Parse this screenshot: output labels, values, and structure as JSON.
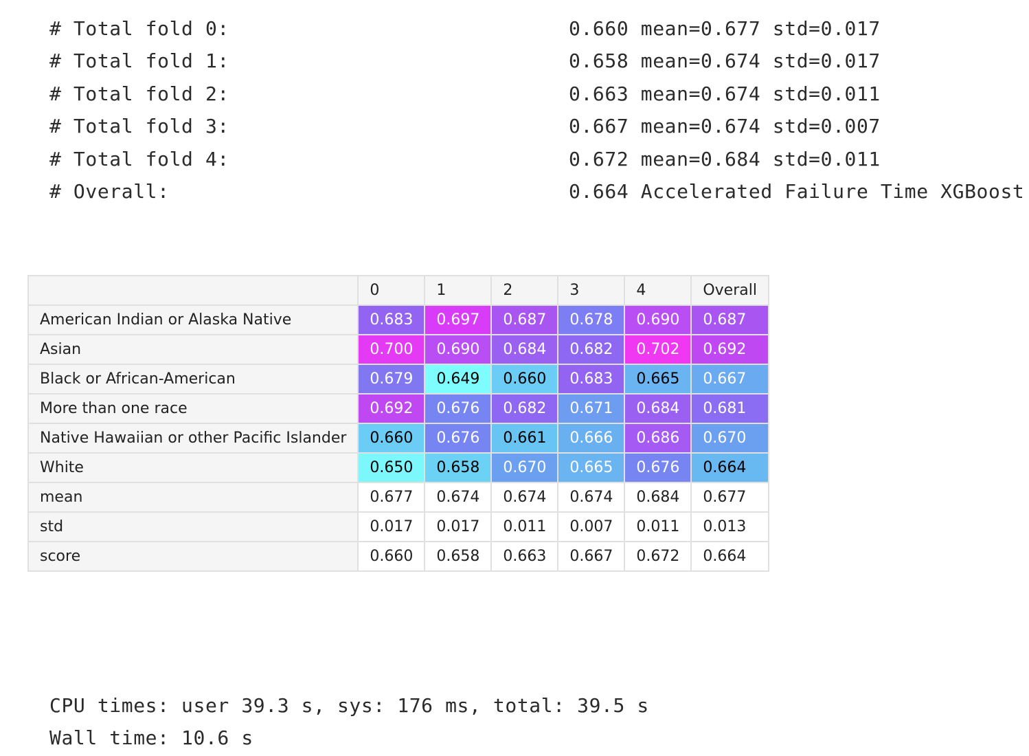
{
  "log": {
    "lines": [
      {
        "label": "# Total fold 0:",
        "value": "0.660 mean=0.677 std=0.017"
      },
      {
        "label": "# Total fold 1:",
        "value": "0.658 mean=0.674 std=0.017"
      },
      {
        "label": "# Total fold 2:",
        "value": "0.663 mean=0.674 std=0.011"
      },
      {
        "label": "# Total fold 3:",
        "value": "0.667 mean=0.674 std=0.007"
      },
      {
        "label": "# Total fold 4:",
        "value": "0.672 mean=0.684 std=0.011"
      },
      {
        "label": "# Overall:",
        "value": "0.664 Accelerated Failure Time XGBoost"
      }
    ]
  },
  "table": {
    "columns": [
      "0",
      "1",
      "2",
      "3",
      "4",
      "Overall"
    ],
    "rows": [
      {
        "label": "American Indian or Alaska Native",
        "cells": [
          {
            "value": "0.683",
            "bg": "#9264f1",
            "fg": "#ffffff"
          },
          {
            "value": "0.697",
            "bg": "#d83cf8",
            "fg": "#ffffff"
          },
          {
            "value": "0.687",
            "bg": "#a955f2",
            "fg": "#ffffff"
          },
          {
            "value": "0.678",
            "bg": "#7d7ef3",
            "fg": "#ffffff"
          },
          {
            "value": "0.690",
            "bg": "#b84ef4",
            "fg": "#ffffff"
          },
          {
            "value": "0.687",
            "bg": "#a955f2",
            "fg": "#ffffff"
          }
        ]
      },
      {
        "label": "Asian",
        "cells": [
          {
            "value": "0.700",
            "bg": "#e43af5",
            "fg": "#ffffff"
          },
          {
            "value": "0.690",
            "bg": "#b84ef4",
            "fg": "#ffffff"
          },
          {
            "value": "0.684",
            "bg": "#9a60f2",
            "fg": "#ffffff"
          },
          {
            "value": "0.682",
            "bg": "#8e68f2",
            "fg": "#ffffff"
          },
          {
            "value": "0.702",
            "bg": "#f038f2",
            "fg": "#ffffff"
          },
          {
            "value": "0.692",
            "bg": "#c048f3",
            "fg": "#ffffff"
          }
        ]
      },
      {
        "label": "Black or African-American",
        "cells": [
          {
            "value": "0.679",
            "bg": "#8077f1",
            "fg": "#ffffff"
          },
          {
            "value": "0.649",
            "bg": "#7efdfe",
            "fg": "#000000"
          },
          {
            "value": "0.660",
            "bg": "#6bccf5",
            "fg": "#000000"
          },
          {
            "value": "0.683",
            "bg": "#9264f1",
            "fg": "#ffffff"
          },
          {
            "value": "0.665",
            "bg": "#69b4f1",
            "fg": "#000000"
          },
          {
            "value": "0.667",
            "bg": "#6aaaf0",
            "fg": "#ffffff"
          }
        ]
      },
      {
        "label": "More than one race",
        "cells": [
          {
            "value": "0.692",
            "bg": "#c048f3",
            "fg": "#ffffff"
          },
          {
            "value": "0.676",
            "bg": "#7785f2",
            "fg": "#ffffff"
          },
          {
            "value": "0.682",
            "bg": "#8e68f2",
            "fg": "#ffffff"
          },
          {
            "value": "0.671",
            "bg": "#6d9cf1",
            "fg": "#ffffff"
          },
          {
            "value": "0.684",
            "bg": "#9a60f2",
            "fg": "#ffffff"
          },
          {
            "value": "0.681",
            "bg": "#8a6df2",
            "fg": "#ffffff"
          }
        ]
      },
      {
        "label": "Native Hawaiian or other Pacific Islander",
        "cells": [
          {
            "value": "0.660",
            "bg": "#6bccf5",
            "fg": "#000000"
          },
          {
            "value": "0.676",
            "bg": "#7785f2",
            "fg": "#ffffff"
          },
          {
            "value": "0.661",
            "bg": "#68c4f3",
            "fg": "#000000"
          },
          {
            "value": "0.666",
            "bg": "#69b0f1",
            "fg": "#ffffff"
          },
          {
            "value": "0.686",
            "bg": "#a55af3",
            "fg": "#ffffff"
          },
          {
            "value": "0.670",
            "bg": "#6ba0f0",
            "fg": "#ffffff"
          }
        ]
      },
      {
        "label": "White",
        "cells": [
          {
            "value": "0.650",
            "bg": "#7cf8fc",
            "fg": "#000000"
          },
          {
            "value": "0.658",
            "bg": "#6bd2f6",
            "fg": "#000000"
          },
          {
            "value": "0.670",
            "bg": "#6ba0f0",
            "fg": "#ffffff"
          },
          {
            "value": "0.665",
            "bg": "#69b4f1",
            "fg": "#ffffff"
          },
          {
            "value": "0.676",
            "bg": "#7785f2",
            "fg": "#ffffff"
          },
          {
            "value": "0.664",
            "bg": "#68b8f2",
            "fg": "#000000"
          }
        ]
      },
      {
        "label": "mean",
        "cells": [
          {
            "value": "0.677"
          },
          {
            "value": "0.674"
          },
          {
            "value": "0.674"
          },
          {
            "value": "0.674"
          },
          {
            "value": "0.684"
          },
          {
            "value": "0.677"
          }
        ]
      },
      {
        "label": "std",
        "cells": [
          {
            "value": "0.017"
          },
          {
            "value": "0.017"
          },
          {
            "value": "0.011"
          },
          {
            "value": "0.007"
          },
          {
            "value": "0.011"
          },
          {
            "value": "0.013"
          }
        ]
      },
      {
        "label": "score",
        "cells": [
          {
            "value": "0.660"
          },
          {
            "value": "0.658"
          },
          {
            "value": "0.663"
          },
          {
            "value": "0.667"
          },
          {
            "value": "0.672"
          },
          {
            "value": "0.664"
          }
        ]
      }
    ]
  },
  "timing": {
    "cpu_times": "CPU times: user 39.3 s, sys: 176 ms, total: 39.5 s",
    "wall_time": "Wall time: 10.6 s"
  }
}
